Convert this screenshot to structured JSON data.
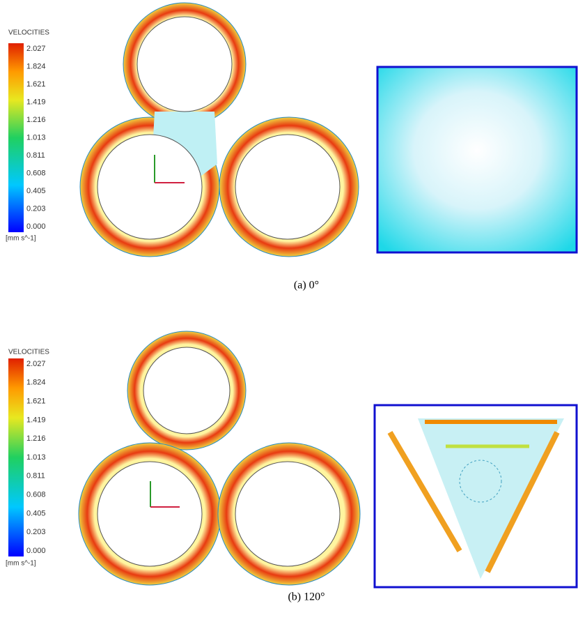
{
  "panels": [
    {
      "legend": {
        "title": "VELOCITIES",
        "ticks": [
          "2.027",
          "1.824",
          "1.621",
          "1.419",
          "1.216",
          "1.013",
          "0.811",
          "0.608",
          "0.405",
          "0.203",
          "0.000"
        ],
        "unit": "[mm s^-1]"
      },
      "caption": "(a) 0°"
    },
    {
      "legend": {
        "title": "VELOCITIES",
        "ticks": [
          "2.027",
          "1.824",
          "1.621",
          "1.419",
          "1.216",
          "1.013",
          "0.811",
          "0.608",
          "0.405",
          "0.203",
          "0.000"
        ],
        "unit": "[mm s^-1]"
      },
      "caption": "(b) 120°"
    }
  ]
}
